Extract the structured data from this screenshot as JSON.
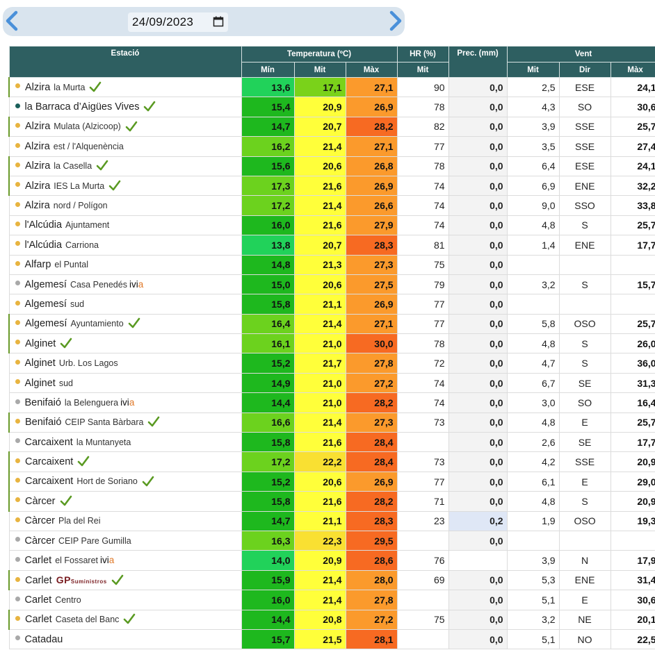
{
  "toolbar": {
    "date_value": "24/09/2023",
    "icons": {
      "prev": "chevron-left-icon",
      "next": "chevron-right-icon",
      "calendar": "calendar-icon"
    }
  },
  "colors": {
    "header_bg": "#2e5f61",
    "valid_check": "#5a9a22",
    "dot_orange": "#e8b440",
    "dot_gray": "#a9a9a9",
    "dot_teal": "#1a5f5a"
  },
  "table": {
    "headers": {
      "station": "Estació",
      "temperature": "Temperatura (ºC)",
      "humidity": "HR (%)",
      "precipitation": "Prec. (mm)",
      "wind": "Vent"
    },
    "subheaders": {
      "t_min": "Mín",
      "t_mit": "Mit",
      "t_max": "Màx",
      "hr_mit": "Mit",
      "w_mit": "Mit",
      "w_dir": "Dir",
      "w_max": "Màx"
    },
    "rows": [
      {
        "name": "Alzira",
        "sub": "la Murta",
        "dot": "orange",
        "valid": true,
        "ivia": false,
        "gp": false,
        "tmin": "13,6",
        "tmit": "17,1",
        "tmax": "27,1",
        "hr": "90",
        "prec": "0,0",
        "wmit": "2,5",
        "wdir": "ESE",
        "wmax": "24,1",
        "cmin": "#21d25a",
        "cmit": "#7ad21a",
        "cmax": "#fb9a2c"
      },
      {
        "name": "la Barraca d’Aigües Vives",
        "sub": "",
        "dot": "teal",
        "valid": false,
        "vcheck": true,
        "ivia": false,
        "gp": false,
        "tmin": "15,4",
        "tmit": "20,9",
        "tmax": "26,9",
        "hr": "78",
        "prec": "0,0",
        "wmit": "4,3",
        "wdir": "SO",
        "wmax": "30,6",
        "cmin": "#1eb81e",
        "cmit": "#ffff3a",
        "cmax": "#fb9a2c"
      },
      {
        "name": "Alzira",
        "sub": "Mulata (Alzicoop)",
        "dot": "orange",
        "valid": true,
        "ivia": false,
        "gp": false,
        "tmin": "14,7",
        "tmit": "20,7",
        "tmax": "28,2",
        "hr": "82",
        "prec": "0,0",
        "wmit": "3,9",
        "wdir": "SSE",
        "wmax": "25,7",
        "cmin": "#1eb81e",
        "cmit": "#ffff3a",
        "cmax": "#f76a22"
      },
      {
        "name": "Alzira",
        "sub": "est / l'Alquenència",
        "dot": "orange",
        "valid": false,
        "ivia": false,
        "gp": false,
        "tmin": "16,2",
        "tmit": "21,4",
        "tmax": "27,1",
        "hr": "77",
        "prec": "0,0",
        "wmit": "3,5",
        "wdir": "SSE",
        "wmax": "27,4",
        "cmin": "#6cd21e",
        "cmit": "#ffff3a",
        "cmax": "#fb9a2c"
      },
      {
        "name": "Alzira",
        "sub": "la Casella",
        "dot": "orange",
        "valid": true,
        "ivia": false,
        "gp": false,
        "tmin": "15,6",
        "tmit": "20,6",
        "tmax": "26,8",
        "hr": "78",
        "prec": "0,0",
        "wmit": "6,4",
        "wdir": "ESE",
        "wmax": "24,1",
        "cmin": "#1eb81e",
        "cmit": "#ffff3a",
        "cmax": "#fb9a2c"
      },
      {
        "name": "Alzira",
        "sub": "IES La Murta",
        "dot": "orange",
        "valid": true,
        "ivia": false,
        "gp": false,
        "tmin": "17,3",
        "tmit": "21,6",
        "tmax": "26,9",
        "hr": "74",
        "prec": "0,0",
        "wmit": "6,9",
        "wdir": "ENE",
        "wmax": "32,2",
        "cmin": "#6cd21e",
        "cmit": "#ffff3a",
        "cmax": "#fb9a2c"
      },
      {
        "name": "Alzira",
        "sub": "nord / Polígon",
        "dot": "orange",
        "valid": false,
        "ivia": false,
        "gp": false,
        "tmin": "17,2",
        "tmit": "21,4",
        "tmax": "26,6",
        "hr": "74",
        "prec": "0,0",
        "wmit": "9,0",
        "wdir": "SSO",
        "wmax": "33,8",
        "cmin": "#6cd21e",
        "cmit": "#ffff3a",
        "cmax": "#fb9a2c"
      },
      {
        "name": "l'Alcúdia",
        "sub": "Ajuntament",
        "dot": "orange",
        "valid": false,
        "ivia": false,
        "gp": false,
        "tmin": "16,0",
        "tmit": "21,6",
        "tmax": "27,9",
        "hr": "74",
        "prec": "0,0",
        "wmit": "4,8",
        "wdir": "S",
        "wmax": "25,7",
        "cmin": "#1eb81e",
        "cmit": "#ffff3a",
        "cmax": "#fb9a2c"
      },
      {
        "name": "l'Alcúdia",
        "sub": "Carriona",
        "dot": "orange",
        "valid": false,
        "ivia": false,
        "gp": false,
        "tmin": "13,8",
        "tmit": "20,7",
        "tmax": "28,3",
        "hr": "81",
        "prec": "0,0",
        "wmit": "1,4",
        "wdir": "ENE",
        "wmax": "17,7",
        "cmin": "#21d25a",
        "cmit": "#ffff3a",
        "cmax": "#f76a22"
      },
      {
        "name": "Alfarp",
        "sub": "el Puntal",
        "dot": "orange",
        "valid": false,
        "ivia": false,
        "gp": false,
        "tmin": "14,8",
        "tmit": "21,3",
        "tmax": "27,3",
        "hr": "75",
        "prec": "0,0",
        "wmit": "",
        "wdir": "",
        "wmax": "",
        "cmin": "#1eb81e",
        "cmit": "#ffff3a",
        "cmax": "#fb9a2c"
      },
      {
        "name": "Algemesí",
        "sub": "Casa Penedés",
        "dot": "gray",
        "valid": false,
        "ivia": true,
        "gp": false,
        "tmin": "15,0",
        "tmit": "20,6",
        "tmax": "27,5",
        "hr": "79",
        "prec": "0,0",
        "wmit": "3,2",
        "wdir": "S",
        "wmax": "15,7",
        "cmin": "#1eb81e",
        "cmit": "#ffff3a",
        "cmax": "#fb9a2c"
      },
      {
        "name": "Algemesí",
        "sub": "sud",
        "dot": "orange",
        "valid": false,
        "ivia": false,
        "gp": false,
        "tmin": "15,8",
        "tmit": "21,1",
        "tmax": "26,9",
        "hr": "77",
        "prec": "0,0",
        "wmit": "",
        "wdir": "",
        "wmax": "",
        "cmin": "#1eb81e",
        "cmit": "#ffff3a",
        "cmax": "#fb9a2c"
      },
      {
        "name": "Algemesí",
        "sub": "Ayuntamiento",
        "dot": "orange",
        "valid": true,
        "ivia": false,
        "gp": false,
        "tmin": "16,4",
        "tmit": "21,4",
        "tmax": "27,1",
        "hr": "77",
        "prec": "0,0",
        "wmit": "5,8",
        "wdir": "OSO",
        "wmax": "25,7",
        "cmin": "#6cd21e",
        "cmit": "#ffff3a",
        "cmax": "#fb9a2c"
      },
      {
        "name": "Alginet",
        "sub": "",
        "dot": "orange",
        "valid": true,
        "ivia": false,
        "gp": false,
        "tmin": "16,1",
        "tmit": "21,0",
        "tmax": "30,0",
        "hr": "78",
        "prec": "0,0",
        "wmit": "4,8",
        "wdir": "S",
        "wmax": "26,0",
        "cmin": "#6cd21e",
        "cmit": "#ffff3a",
        "cmax": "#f76a22"
      },
      {
        "name": "Alginet",
        "sub": "Urb. Los Lagos",
        "dot": "orange",
        "valid": false,
        "ivia": false,
        "gp": false,
        "tmin": "15,2",
        "tmit": "21,7",
        "tmax": "27,8",
        "hr": "72",
        "prec": "0,0",
        "wmit": "4,7",
        "wdir": "S",
        "wmax": "36,0",
        "cmin": "#1eb81e",
        "cmit": "#ffff3a",
        "cmax": "#fb9a2c"
      },
      {
        "name": "Alginet",
        "sub": "sud",
        "dot": "orange",
        "valid": false,
        "ivia": false,
        "gp": false,
        "tmin": "14,9",
        "tmit": "21,0",
        "tmax": "27,2",
        "hr": "74",
        "prec": "0,0",
        "wmit": "6,7",
        "wdir": "SE",
        "wmax": "31,3",
        "cmin": "#1eb81e",
        "cmit": "#ffff3a",
        "cmax": "#fb9a2c"
      },
      {
        "name": "Benifaió",
        "sub": "la Belenguera",
        "dot": "gray",
        "valid": false,
        "ivia": true,
        "gp": false,
        "tmin": "14,4",
        "tmit": "21,0",
        "tmax": "28,2",
        "hr": "74",
        "prec": "0,0",
        "wmit": "3,0",
        "wdir": "SO",
        "wmax": "16,4",
        "cmin": "#1eb81e",
        "cmit": "#ffff3a",
        "cmax": "#f76a22"
      },
      {
        "name": "Benifaió",
        "sub": "CEIP Santa Bàrbara",
        "dot": "orange",
        "valid": true,
        "ivia": false,
        "gp": false,
        "tmin": "16,6",
        "tmit": "21,4",
        "tmax": "27,3",
        "hr": "73",
        "prec": "0,0",
        "wmit": "4,8",
        "wdir": "E",
        "wmax": "25,7",
        "cmin": "#6cd21e",
        "cmit": "#ffff3a",
        "cmax": "#fb9a2c"
      },
      {
        "name": "Carcaixent",
        "sub": "la Muntanyeta",
        "dot": "gray",
        "valid": false,
        "ivia": false,
        "gp": false,
        "tmin": "15,8",
        "tmit": "21,6",
        "tmax": "28,4",
        "hr": "",
        "prec": "0,0",
        "wmit": "2,6",
        "wdir": "SE",
        "wmax": "17,7",
        "cmin": "#1eb81e",
        "cmit": "#ffff3a",
        "cmax": "#f76a22"
      },
      {
        "name": "Carcaixent",
        "sub": "",
        "dot": "orange",
        "valid": true,
        "ivia": false,
        "gp": false,
        "tmin": "17,2",
        "tmit": "22,2",
        "tmax": "28,4",
        "hr": "73",
        "prec": "0,0",
        "wmit": "4,2",
        "wdir": "SSE",
        "wmax": "20,9",
        "cmin": "#6cd21e",
        "cmit": "#f9e032",
        "cmax": "#f76a22"
      },
      {
        "name": "Carcaixent",
        "sub": "Hort de Soriano",
        "dot": "orange",
        "valid": true,
        "ivia": false,
        "gp": false,
        "tmin": "15,2",
        "tmit": "20,6",
        "tmax": "26,9",
        "hr": "77",
        "prec": "0,0",
        "wmit": "6,1",
        "wdir": "E",
        "wmax": "29,0",
        "cmin": "#1eb81e",
        "cmit": "#ffff3a",
        "cmax": "#fb9a2c"
      },
      {
        "name": "Càrcer",
        "sub": "",
        "dot": "orange",
        "valid": true,
        "ivia": false,
        "gp": false,
        "tmin": "15,8",
        "tmit": "21,6",
        "tmax": "28,2",
        "hr": "71",
        "prec": "0,0",
        "wmit": "4,8",
        "wdir": "S",
        "wmax": "20,9",
        "cmin": "#1eb81e",
        "cmit": "#ffff3a",
        "cmax": "#f76a22"
      },
      {
        "name": "Càrcer",
        "sub": "Pla del Rei",
        "dot": "orange",
        "valid": false,
        "ivia": false,
        "gp": false,
        "tmin": "14,7",
        "tmit": "21,1",
        "tmax": "28,3",
        "hr": "23",
        "prec": "0,2",
        "rain": true,
        "wmit": "1,9",
        "wdir": "OSO",
        "wmax": "19,3",
        "cmin": "#1eb81e",
        "cmit": "#ffff3a",
        "cmax": "#f76a22"
      },
      {
        "name": "Càrcer",
        "sub": "CEIP Pare Gumilla",
        "dot": "gray",
        "valid": false,
        "ivia": false,
        "gp": false,
        "tmin": "16,3",
        "tmit": "22,3",
        "tmax": "29,5",
        "hr": "",
        "prec": "0,0",
        "wmit": "",
        "wdir": "",
        "wmax": "",
        "cmin": "#6cd21e",
        "cmit": "#f9e032",
        "cmax": "#f76a22"
      },
      {
        "name": "Carlet",
        "sub": "el Fossaret",
        "dot": "gray",
        "valid": false,
        "ivia": true,
        "gp": false,
        "tmin": "14,0",
        "tmit": "20,9",
        "tmax": "28,6",
        "hr": "76",
        "prec": "",
        "wmit": "3,9",
        "wdir": "N",
        "wmax": "17,9",
        "cmin": "#21d25a",
        "cmit": "#ffff3a",
        "cmax": "#f76a22"
      },
      {
        "name": "Carlet",
        "sub": "",
        "dot": "orange",
        "valid": true,
        "ivia": false,
        "gp": true,
        "tmin": "15,9",
        "tmit": "21,4",
        "tmax": "28,0",
        "hr": "69",
        "prec": "0,0",
        "wmit": "5,3",
        "wdir": "ENE",
        "wmax": "31,4",
        "cmin": "#1eb81e",
        "cmit": "#ffff3a",
        "cmax": "#fb9a2c"
      },
      {
        "name": "Carlet",
        "sub": "Centro",
        "dot": "gray",
        "valid": false,
        "ivia": false,
        "gp": false,
        "tmin": "16,0",
        "tmit": "21,4",
        "tmax": "27,8",
        "hr": "",
        "prec": "0,0",
        "wmit": "5,1",
        "wdir": "E",
        "wmax": "30,6",
        "cmin": "#1eb81e",
        "cmit": "#ffff3a",
        "cmax": "#fb9a2c"
      },
      {
        "name": "Carlet",
        "sub": "Caseta del Banc",
        "dot": "orange",
        "valid": true,
        "ivia": false,
        "gp": false,
        "tmin": "14,4",
        "tmit": "20,8",
        "tmax": "27,2",
        "hr": "75",
        "prec": "0,0",
        "wmit": "3,2",
        "wdir": "NE",
        "wmax": "20,1",
        "cmin": "#1eb81e",
        "cmit": "#ffff3a",
        "cmax": "#fb9a2c"
      },
      {
        "name": "Catadau",
        "sub": "",
        "dot": "gray",
        "valid": false,
        "ivia": false,
        "gp": false,
        "tmin": "15,7",
        "tmit": "21,5",
        "tmax": "28,1",
        "hr": "",
        "prec": "0,0",
        "wmit": "5,1",
        "wdir": "NO",
        "wmax": "22,5",
        "cmin": "#1eb81e",
        "cmit": "#ffff3a",
        "cmax": "#f76a22"
      }
    ],
    "ivia_label": "ivi",
    "ivia_label_end": "a",
    "gp_label": "GP",
    "gp_sub": "Suministros"
  }
}
